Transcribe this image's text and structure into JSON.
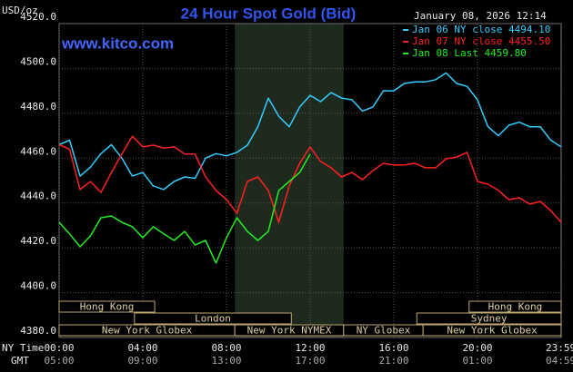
{
  "chart_data": {
    "type": "line",
    "title": "24 Hour Spot Gold (Bid)",
    "website": "www.kitco.com",
    "unit_label": "USD/oz",
    "timestamp": "January 08, 2026 12:14",
    "x_axis_label": "NY Time",
    "x2_axis_label": "GMT",
    "xlim": [
      0,
      24
    ],
    "xticks": [
      {
        "value": 0,
        "label": "00:00"
      },
      {
        "value": 4,
        "label": "04:00"
      },
      {
        "value": 8,
        "label": "08:00"
      },
      {
        "value": 12,
        "label": "12:00"
      },
      {
        "value": 16,
        "label": "16:00"
      },
      {
        "value": 20,
        "label": "20:00"
      },
      {
        "value": 23.983,
        "label": "23:59"
      }
    ],
    "x2tick_labels": [
      "05:00",
      "09:00",
      "13:00",
      "17:00",
      "21:00",
      "01:00",
      "04:59"
    ],
    "ylim": [
      4380,
      4520
    ],
    "yticks": [
      {
        "value": 4380,
        "label": "4380.0"
      },
      {
        "value": 4400,
        "label": "4400.0"
      },
      {
        "value": 4420,
        "label": "4420.0"
      },
      {
        "value": 4440,
        "label": "4440.0"
      },
      {
        "value": 4460,
        "label": "4460.0"
      },
      {
        "value": 4480,
        "label": "4480.0"
      },
      {
        "value": 4500,
        "label": "4500.0"
      },
      {
        "value": 4520,
        "label": "4520.0"
      }
    ],
    "grid": true,
    "highlight_range": [
      8.4,
      13.6
    ],
    "sessions": [
      [
        {
          "label": "Hong Kong",
          "start": 0,
          "end": 4.57
        },
        {
          "label": "Hong Kong",
          "start": 19.6,
          "end": 24
        }
      ],
      [
        {
          "label": "London",
          "start": 3.6,
          "end": 11.1
        },
        {
          "label": "Sydney",
          "start": 17.1,
          "end": 24
        }
      ],
      [
        {
          "label": "New York Globex",
          "start": 0,
          "end": 8.4
        },
        {
          "label": "New York NYMEX",
          "start": 8.4,
          "end": 13.6
        },
        {
          "label": "NY Globex",
          "start": 13.6,
          "end": 17.4
        },
        {
          "label": "New York Globex",
          "start": 17.4,
          "end": 24
        }
      ]
    ],
    "x": [
      0,
      0.5,
      1,
      1.5,
      2,
      2.5,
      3,
      3.5,
      4,
      4.5,
      5,
      5.5,
      6,
      6.5,
      7,
      7.5,
      8,
      8.5,
      9,
      9.5,
      10,
      10.5,
      11,
      11.5,
      12,
      12.5,
      13,
      13.5,
      14,
      14.5,
      15,
      15.5,
      16,
      16.5,
      17,
      17.5,
      18,
      18.5,
      19,
      19.5,
      20,
      20.5,
      21,
      21.5,
      22,
      22.5,
      23,
      23.5,
      24
    ],
    "series": [
      {
        "name": "Jan 06 NY close 4494.10",
        "color": "#33ccff",
        "values": [
          4466,
          4468,
          4452,
          4456,
          4462,
          4466,
          4460,
          4452,
          4453.6,
          4447.6,
          4446,
          4449.6,
          4451.6,
          4451,
          4460,
          4462,
          4461,
          4462.6,
          4465.8,
          4474,
          4486.8,
          4478.7,
          4474,
          4482.8,
          4488,
          4485.2,
          4489.2,
          4486.8,
          4486,
          4481,
          4482.8,
          4490,
          4490,
          4493.3,
          4494,
          4494,
          4495,
          4498,
          4493.3,
          4492,
          4486,
          4474,
          4470,
          4474.7,
          4476,
          4474,
          4474,
          4468,
          4465
        ]
      },
      {
        "name": "Jan 07 NY close 4455.50",
        "color": "#ff2020",
        "values": [
          4466,
          4464,
          4446,
          4449.6,
          4444.7,
          4453.6,
          4461.8,
          4469.8,
          4465,
          4465.8,
          4464.5,
          4465,
          4461.8,
          4461.8,
          4451.6,
          4445.6,
          4441.5,
          4435.4,
          4449.6,
          4451.6,
          4445.6,
          4431.4,
          4447.6,
          4457.7,
          4465,
          4458.5,
          4455.7,
          4451.6,
          4453.6,
          4450.4,
          4454.4,
          4457.7,
          4456.9,
          4456.9,
          4457.7,
          4455.7,
          4455.7,
          4459.7,
          4460.5,
          4462.6,
          4449.6,
          4448.4,
          4445.6,
          4441.5,
          4442.3,
          4439.5,
          4440.7,
          4436.6,
          4431.4
        ]
      },
      {
        "name": "Jan 08 Last 4459.80",
        "color": "#22ee22",
        "values": [
          4431.4,
          4426.2,
          4420.5,
          4425.3,
          4433.4,
          4434.2,
          4431.4,
          4429.4,
          4424.5,
          4429.4,
          4426.2,
          4423.3,
          4427.3,
          4421.3,
          4423.3,
          4413.2,
          4424.5,
          4433.4,
          4427.3,
          4423.3,
          4427.3,
          4445.6,
          4449.6,
          4453.6,
          4461.8,
          null,
          null,
          null,
          null,
          null,
          null,
          null,
          null,
          null,
          null,
          null,
          null,
          null,
          null,
          null,
          null,
          null,
          null,
          null,
          null,
          null,
          null,
          null,
          null
        ]
      }
    ]
  }
}
